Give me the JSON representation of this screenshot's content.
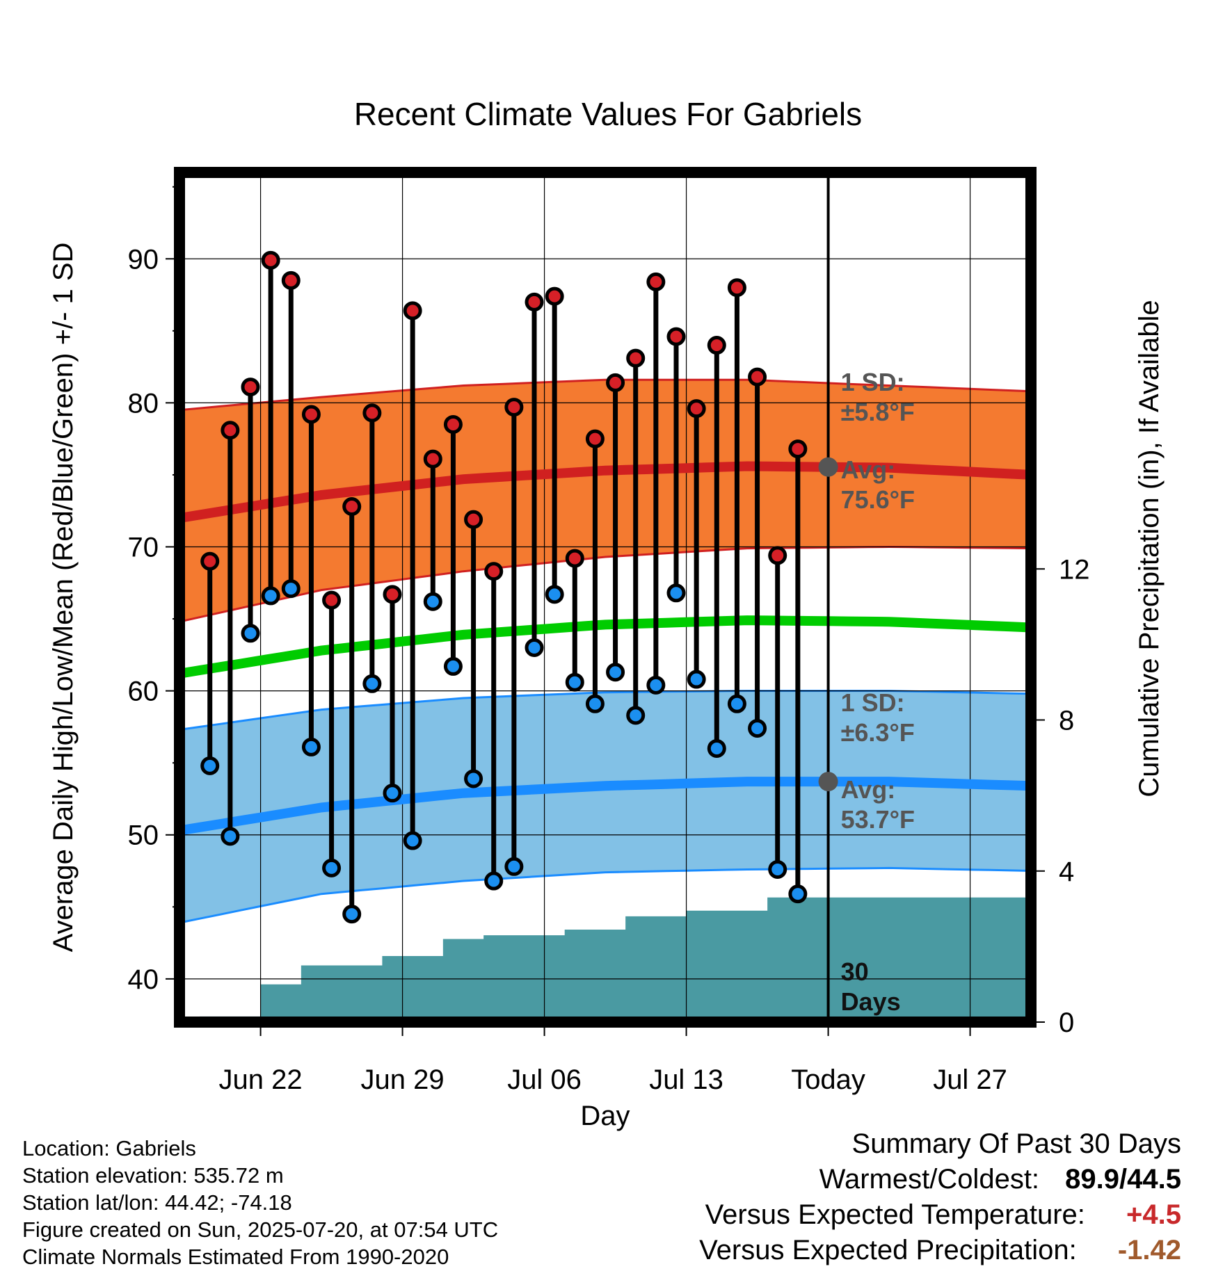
{
  "title": "Recent Climate Values For Gabriels",
  "chart_data": {
    "type": "line",
    "title": "Recent Climate Values For Gabriels",
    "xlabel": "Day",
    "ylabel_left": "Average Daily High/Low/Mean (Red/Blue/Green) +/- 1 SD",
    "ylabel_right": "Cumulative Precipitation (in), If Available",
    "x_tick_labels": [
      "Jun 22",
      "Jun 29",
      "Jul 06",
      "Jul 13",
      "Today",
      "Jul 27"
    ],
    "x_tick_dates": [
      "2025-06-22",
      "2025-06-29",
      "2025-07-06",
      "2025-07-13",
      "2025-07-20",
      "2025-07-27"
    ],
    "xlim": [
      "2025-06-18",
      "2025-07-30"
    ],
    "ylim_left": [
      37,
      96
    ],
    "yticks_left": [
      40,
      50,
      60,
      70,
      80,
      90
    ],
    "ylim_right": [
      0,
      22.5
    ],
    "yticks_right": [
      0,
      4,
      8,
      12
    ],
    "grid": true,
    "today_date": "2025-07-20",
    "daily_obs": {
      "dates": [
        "2025-06-19",
        "2025-06-20",
        "2025-06-21",
        "2025-06-22",
        "2025-06-23",
        "2025-06-24",
        "2025-06-25",
        "2025-06-26",
        "2025-06-27",
        "2025-06-28",
        "2025-06-29",
        "2025-06-30",
        "2025-07-01",
        "2025-07-02",
        "2025-07-03",
        "2025-07-04",
        "2025-07-05",
        "2025-07-06",
        "2025-07-07",
        "2025-07-08",
        "2025-07-09",
        "2025-07-10",
        "2025-07-11",
        "2025-07-12",
        "2025-07-13",
        "2025-07-14",
        "2025-07-15",
        "2025-07-16",
        "2025-07-17",
        "2025-07-18",
        "2025-07-19"
      ],
      "high": [
        69.0,
        78.1,
        81.1,
        89.9,
        88.5,
        79.2,
        66.3,
        72.8,
        79.3,
        66.7,
        86.4,
        76.1,
        78.5,
        71.9,
        68.3,
        79.7,
        87.0,
        87.4,
        69.2,
        77.5,
        81.4,
        83.1,
        88.4,
        84.6,
        79.6,
        84.0,
        88.0,
        81.8,
        69.4,
        76.8,
        null
      ],
      "low": [
        54.8,
        49.9,
        64.0,
        66.6,
        67.1,
        56.1,
        47.7,
        44.5,
        60.5,
        52.9,
        49.6,
        66.2,
        61.7,
        53.9,
        46.8,
        47.8,
        63.0,
        66.7,
        60.6,
        59.1,
        61.3,
        58.3,
        60.4,
        66.8,
        60.8,
        56.0,
        59.1,
        57.4,
        47.6,
        45.9,
        null
      ]
    },
    "series": [
      {
        "name": "Normal High",
        "color": "#d02020",
        "band_color": "#f47a30",
        "x": [
          "2025-06-18",
          "2025-06-25",
          "2025-07-02",
          "2025-07-09",
          "2025-07-16",
          "2025-07-23",
          "2025-07-30"
        ],
        "avg": [
          72.0,
          73.6,
          74.7,
          75.3,
          75.6,
          75.5,
          75.0
        ],
        "upper": [
          79.5,
          80.4,
          81.2,
          81.6,
          81.6,
          81.2,
          80.8
        ],
        "lower": [
          64.8,
          67.0,
          68.3,
          69.3,
          69.9,
          70.0,
          69.9
        ]
      },
      {
        "name": "Normal Mean",
        "color": "#00cc00",
        "x": [
          "2025-06-18",
          "2025-06-25",
          "2025-07-02",
          "2025-07-09",
          "2025-07-16",
          "2025-07-23",
          "2025-07-30"
        ],
        "avg": [
          61.2,
          62.8,
          63.9,
          64.6,
          64.9,
          64.8,
          64.4
        ]
      },
      {
        "name": "Normal Low",
        "color": "#1a8cff",
        "band_color": "#82c1e6",
        "x": [
          "2025-06-18",
          "2025-06-25",
          "2025-07-02",
          "2025-07-09",
          "2025-07-16",
          "2025-07-23",
          "2025-07-30"
        ],
        "avg": [
          50.3,
          51.9,
          52.9,
          53.4,
          53.7,
          53.7,
          53.4
        ],
        "upper": [
          57.3,
          58.7,
          59.5,
          59.9,
          60.0,
          60.0,
          59.8
        ],
        "lower": [
          43.9,
          45.9,
          46.8,
          47.4,
          47.6,
          47.7,
          47.5
        ]
      }
    ],
    "precip_cumulative": {
      "color": "#4a9aa2",
      "dates": [
        "2025-06-18",
        "2025-06-19",
        "2025-06-20",
        "2025-06-21",
        "2025-06-22",
        "2025-06-23",
        "2025-06-24",
        "2025-06-25",
        "2025-06-26",
        "2025-06-27",
        "2025-06-28",
        "2025-06-29",
        "2025-06-30",
        "2025-07-01",
        "2025-07-02",
        "2025-07-03",
        "2025-07-04",
        "2025-07-05",
        "2025-07-06",
        "2025-07-07",
        "2025-07-08",
        "2025-07-09",
        "2025-07-10",
        "2025-07-11",
        "2025-07-12",
        "2025-07-13",
        "2025-07-14",
        "2025-07-15",
        "2025-07-16",
        "2025-07-17",
        "2025-07-18",
        "2025-07-19",
        "2025-07-20",
        "2025-07-30"
      ],
      "values": [
        0.0,
        0.15,
        0.15,
        0.15,
        1.0,
        1.0,
        1.5,
        1.5,
        1.5,
        1.5,
        1.75,
        1.75,
        1.75,
        2.2,
        2.2,
        2.3,
        2.3,
        2.3,
        2.3,
        2.45,
        2.45,
        2.45,
        2.8,
        2.8,
        2.8,
        2.95,
        2.95,
        2.95,
        2.95,
        3.3,
        3.3,
        3.3,
        3.3,
        3.3
      ]
    },
    "annotations": {
      "high_sd_label": "1 SD:",
      "high_sd_value": "±5.8°F",
      "high_avg_label": "Avg:",
      "high_avg_value": "75.6°F",
      "low_sd_label": "1 SD:",
      "low_sd_value": "±6.3°F",
      "low_avg_label": "Avg:",
      "low_avg_value": "53.7°F",
      "days_number": "30",
      "days_label": "Days"
    }
  },
  "footer": {
    "location": "Location: Gabriels",
    "elevation": "Station elevation: 535.72 m",
    "latlon": "Station lat/lon: 44.42; -74.18",
    "created": "Figure created on Sun, 2025-07-20, at 07:54 UTC",
    "normals": "Climate Normals Estimated From 1990-2020"
  },
  "summary": {
    "title": "Summary Of Past 30 Days",
    "warmest_label": "Warmest/Coldest:",
    "warmest_value": "89.9/44.5",
    "temp_label": "Versus Expected Temperature:",
    "temp_value": "+4.5",
    "temp_color": "#c8282a",
    "precip_label": "Versus Expected Precipitation:",
    "precip_value": "-1.42",
    "precip_color": "#a05a2c"
  }
}
